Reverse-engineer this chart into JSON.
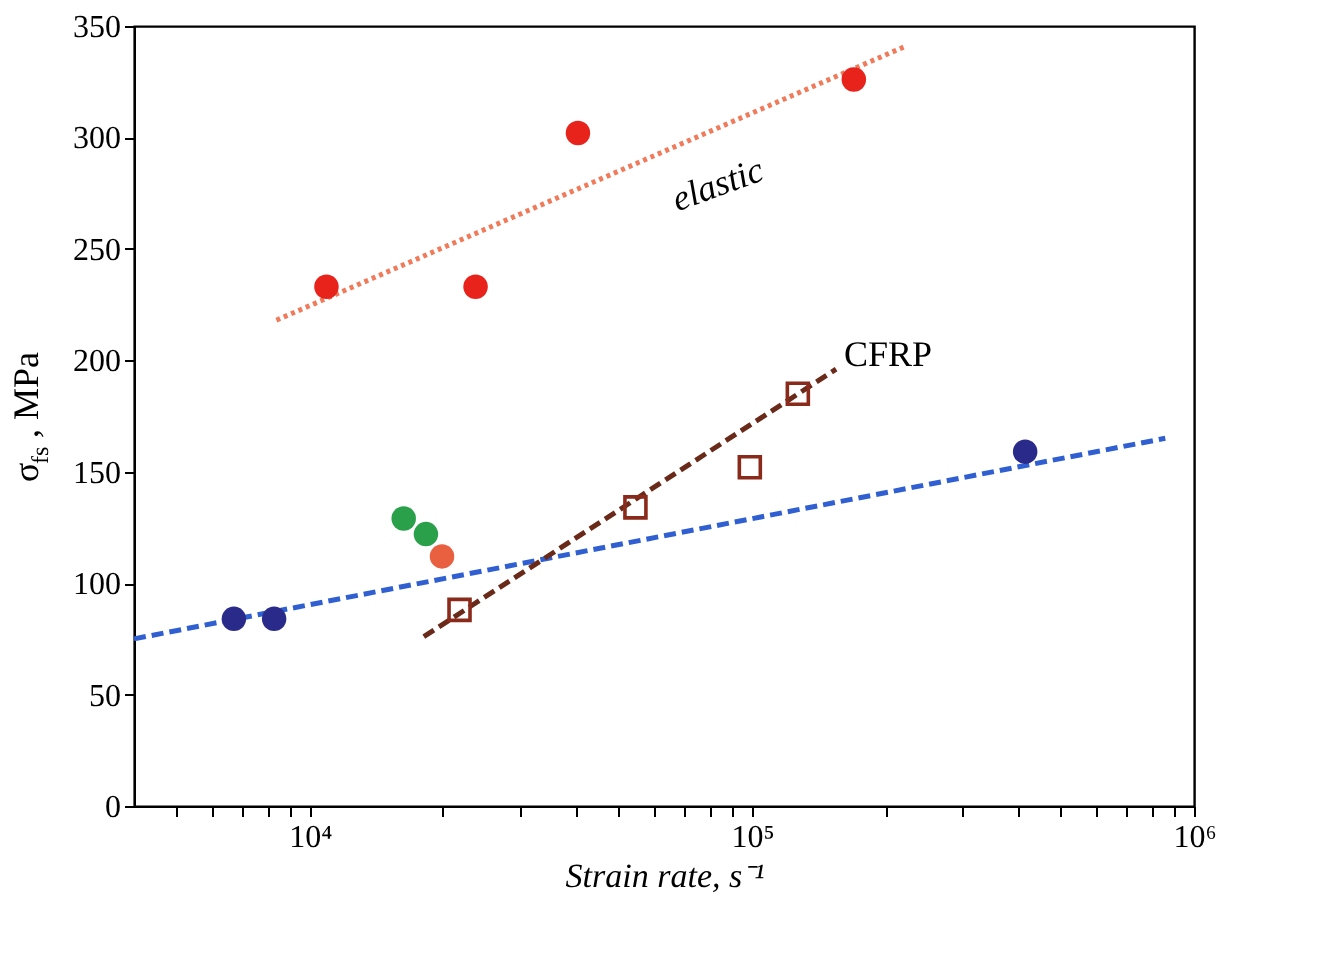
{
  "chart_data": {
    "type": "scatter",
    "xlabel": "Strain rate, s⁻¹",
    "ylabel": "σ$_{fs}$, MPa",
    "xlim": [
      4000,
      1000000
    ],
    "ylim": [
      0,
      350
    ],
    "log": "x",
    "grid": false,
    "xticks": [
      {
        "value": 5000,
        "label": null
      },
      {
        "value": 6000,
        "label": null
      },
      {
        "value": 7000,
        "label": null
      },
      {
        "value": 8000,
        "label": null
      },
      {
        "value": 9000,
        "label": null
      },
      {
        "value": 10000,
        "label": "10⁴"
      },
      {
        "value": 20000,
        "label": null
      },
      {
        "value": 30000,
        "label": null
      },
      {
        "value": 40000,
        "label": null
      },
      {
        "value": 50000,
        "label": null
      },
      {
        "value": 60000,
        "label": null
      },
      {
        "value": 70000,
        "label": null
      },
      {
        "value": 80000,
        "label": null
      },
      {
        "value": 90000,
        "label": null
      },
      {
        "value": 100000,
        "label": "10⁵"
      },
      {
        "value": 200000,
        "label": null
      },
      {
        "value": 300000,
        "label": null
      },
      {
        "value": 400000,
        "label": null
      },
      {
        "value": 500000,
        "label": null
      },
      {
        "value": 600000,
        "label": null
      },
      {
        "value": 700000,
        "label": null
      },
      {
        "value": 800000,
        "label": null
      },
      {
        "value": 900000,
        "label": null
      },
      {
        "value": 1000000,
        "label": "10⁶"
      }
    ],
    "yticks": [
      0,
      50,
      100,
      150,
      200,
      250,
      300,
      350
    ],
    "series": [
      {
        "type": "line",
        "line_style": "dotted",
        "color": "#f07a5a",
        "x": [
          8400,
          223000
        ],
        "values": [
          218,
          341
        ]
      },
      {
        "type": "line",
        "line_style": "dashed",
        "color": "#2f5fd0",
        "x": [
          4000,
          861000
        ],
        "values": [
          75,
          165
        ]
      },
      {
        "type": "line",
        "line_style": "dashed",
        "color": "#6a2a1a",
        "x": [
          18100,
          155000
        ],
        "values": [
          76,
          196
        ]
      },
      {
        "marker": "circle",
        "color": "#e8231c",
        "x": [
          10900,
          23700,
          40400,
          170000
        ],
        "values": [
          233,
          233,
          302,
          326
        ]
      },
      {
        "marker": "circle",
        "color": "#2a2a8a",
        "x": [
          6730,
          8300,
          415000
        ],
        "values": [
          84,
          84,
          159
        ]
      },
      {
        "marker": "circle",
        "color": "#2aa04a",
        "x": [
          16300,
          18300
        ],
        "values": [
          129,
          122
        ]
      },
      {
        "marker": "circle",
        "color": "#e86040",
        "x": [
          19900
        ],
        "values": [
          112
        ]
      },
      {
        "marker": "square",
        "color": "#8a2a1a",
        "x": [
          21800,
          54500,
          98900,
          127000
        ],
        "values": [
          88,
          134,
          152,
          185
        ]
      }
    ],
    "annotations": [
      "elastic",
      "CFRP"
    ]
  }
}
